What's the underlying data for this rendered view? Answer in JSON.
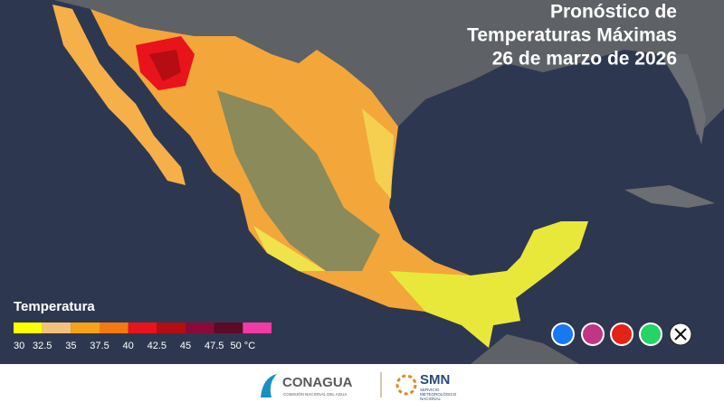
{
  "header": {
    "title_lines": [
      "Pronóstico de",
      "Temperaturas Máximas",
      "26 de marzo de 2026"
    ]
  },
  "legend": {
    "title": "Temperatura",
    "labels": [
      "30",
      "32.5",
      "35",
      "37.5",
      "40",
      "42.5",
      "45",
      "47.5",
      "50 °C"
    ],
    "colors": [
      "#ffff00",
      "#f5c07a",
      "#f7a21b",
      "#f47a10",
      "#e8131b",
      "#b50d12",
      "#8a0b3a",
      "#5c0a28",
      "#f23aa5"
    ]
  },
  "footer": {
    "conagua": "CONAGUA",
    "conagua_subtitle": "COMISIÓN NACIONAL DEL AGUA",
    "smn": "SMN",
    "smn_subtitle": [
      "SERVICIO",
      "METEOROLÓGICO",
      "NACIONAL"
    ]
  }
}
